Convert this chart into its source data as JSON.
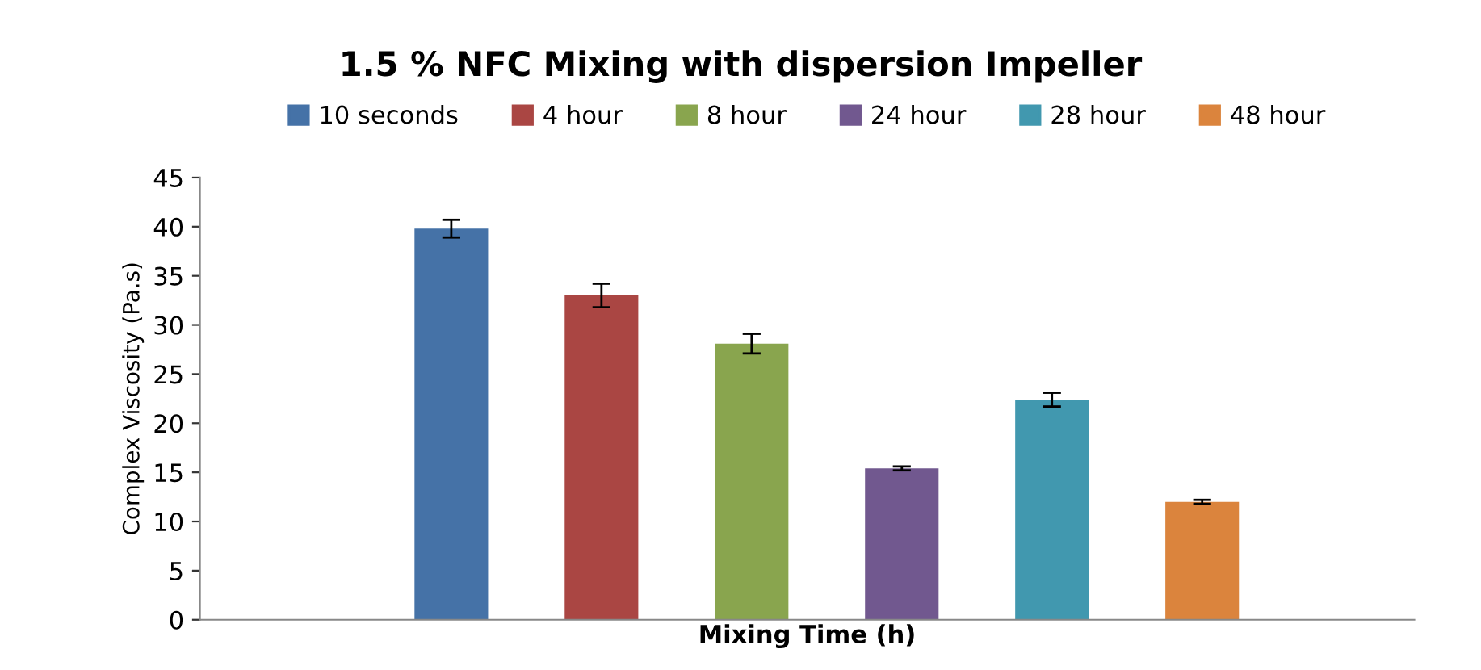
{
  "chart_data": {
    "type": "bar",
    "title": "1.5 % NFC Mixing with dispersion Impeller",
    "xlabel": "Mixing Time (h)",
    "ylabel": "Complex Viscosity (Pa.s)",
    "categories": [
      null
    ],
    "series": [
      {
        "name": "10 seconds",
        "color": "#4572a7",
        "values": [
          39.8
        ],
        "errors": [
          0.9
        ]
      },
      {
        "name": "4 hour",
        "color": "#aa4643",
        "values": [
          33.0
        ],
        "errors": [
          1.2
        ]
      },
      {
        "name": "8 hour",
        "color": "#89a54e",
        "values": [
          28.1
        ],
        "errors": [
          1.0
        ]
      },
      {
        "name": "24 hour",
        "color": "#71588f",
        "values": [
          15.4
        ],
        "errors": [
          0.2
        ]
      },
      {
        "name": "28 hour",
        "color": "#4198af",
        "values": [
          22.4
        ],
        "errors": [
          0.7
        ]
      },
      {
        "name": "48 hour",
        "color": "#db843d",
        "values": [
          12.0
        ],
        "errors": [
          0.2
        ]
      }
    ],
    "ylim": [
      0,
      45
    ],
    "yticks": [
      0,
      5,
      10,
      15,
      20,
      25,
      30,
      35,
      40,
      45
    ],
    "tick_labels": "y",
    "grid": false,
    "legend": "top"
  }
}
